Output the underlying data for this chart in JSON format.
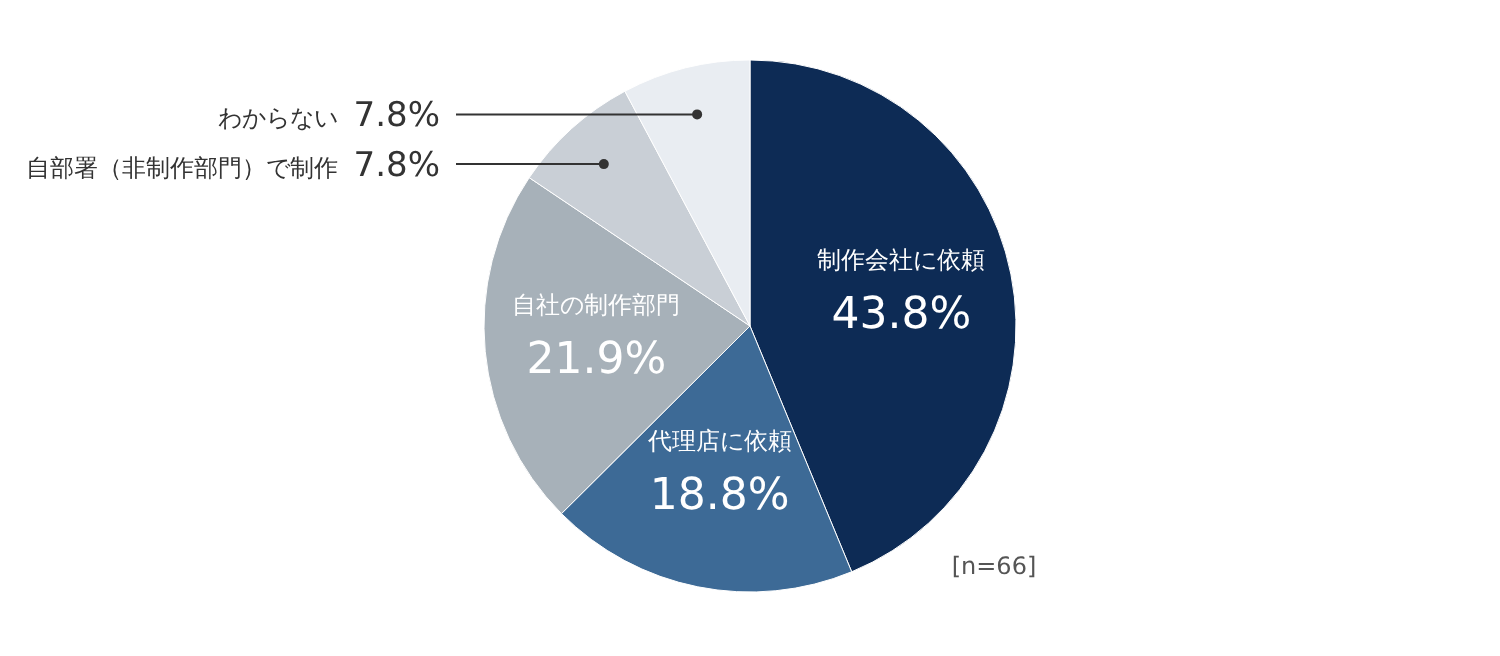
{
  "chart_data": {
    "type": "pie",
    "categories": [
      "制作会社に依頼",
      "代理店に依頼",
      "自社の制作部門",
      "自部署（非制作部門）で制作",
      "わからない"
    ],
    "values": [
      43.8,
      18.8,
      21.9,
      7.8,
      7.8
    ],
    "value_labels": [
      "43.8%",
      "18.8%",
      "21.9%",
      "7.8%",
      "7.8%"
    ],
    "colors": [
      "#0d2b55",
      "#3d6a96",
      "#a7b1b9",
      "#c9cfd6",
      "#e9edf2"
    ],
    "annotations": [
      "[n=66]"
    ]
  }
}
